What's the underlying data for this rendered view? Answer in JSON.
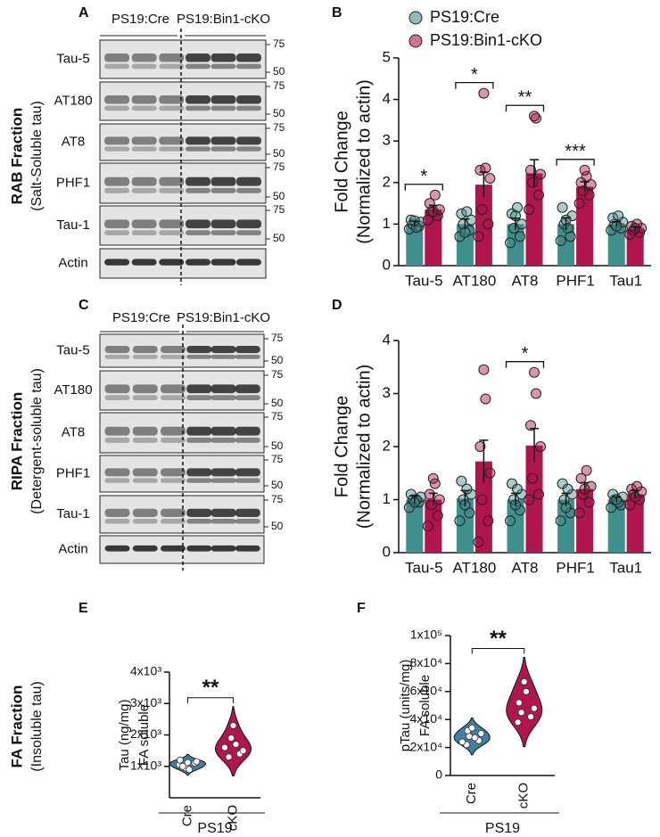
{
  "fractions": [
    {
      "title": "RAB Fraction",
      "subtitle": "(Salt-Soluble tau)"
    },
    {
      "title": "RIPA Fraction",
      "subtitle": "(Detergent-soluble tau)"
    },
    {
      "title": "FA Fraction",
      "subtitle": "(Insoluble tau)"
    }
  ],
  "blots": [
    {
      "panel": "A",
      "groups": [
        "PS19:Cre",
        "PS19:Bin1-cKO"
      ],
      "rows": [
        {
          "label": "Tau-5",
          "markers": [
            75,
            50
          ]
        },
        {
          "label": "AT180",
          "markers": [
            75,
            50
          ]
        },
        {
          "label": "AT8",
          "markers": [
            75,
            50
          ]
        },
        {
          "label": "PHF1",
          "markers": [
            75,
            50
          ]
        },
        {
          "label": "Tau-1",
          "markers": [
            75,
            50
          ]
        },
        {
          "label": "Actin"
        }
      ]
    },
    {
      "panel": "C",
      "groups": [
        "PS19:Cre",
        "PS19:Bin1-cKO"
      ],
      "rows": [
        {
          "label": "Tau-5",
          "markers": [
            75,
            50
          ]
        },
        {
          "label": "AT180",
          "markers": [
            75,
            50
          ]
        },
        {
          "label": "AT8",
          "markers": [
            75,
            50
          ]
        },
        {
          "label": "PHF1",
          "markers": [
            75,
            50
          ]
        },
        {
          "label": "Tau-1",
          "markers": [
            75,
            50
          ]
        },
        {
          "label": "Actin"
        }
      ]
    }
  ],
  "chart_data": [
    {
      "type": "bar",
      "panel": "B",
      "ylabel": [
        "Fold Change",
        "(Normalized to actin)"
      ],
      "categories": [
        "Tau-5",
        "AT180",
        "AT8",
        "PHF1",
        "Tau1"
      ],
      "ylim": [
        0,
        5
      ],
      "yticks": [
        0,
        1,
        2,
        3,
        4,
        5
      ],
      "legend": "top",
      "series": [
        {
          "name": "PS19:Cre",
          "color": "#3f8f8c",
          "values": [
            1.0,
            1.0,
            1.0,
            1.0,
            1.0
          ],
          "errors": [
            0.07,
            0.12,
            0.14,
            0.15,
            0.06
          ],
          "points": [
            [
              0.88,
              0.95,
              1.0,
              1.05,
              1.1,
              0.92,
              1.08
            ],
            [
              0.7,
              0.85,
              1.0,
              1.1,
              1.25,
              1.3,
              0.8
            ],
            [
              0.55,
              0.7,
              0.9,
              1.0,
              1.25,
              1.4,
              1.2
            ],
            [
              0.6,
              0.7,
              1.0,
              1.2,
              1.4,
              0.9,
              1.1
            ],
            [
              0.85,
              0.9,
              1.0,
              1.05,
              1.15,
              1.2,
              0.95
            ]
          ]
        },
        {
          "name": "PS19:Bin1-cKO",
          "color": "#b0154e",
          "values": [
            1.35,
            1.95,
            2.22,
            1.9,
            0.88
          ],
          "errors": [
            0.1,
            0.3,
            0.33,
            0.12,
            0.05
          ],
          "points": [
            [
              1.1,
              1.2,
              1.3,
              1.35,
              1.5,
              1.7,
              1.3
            ],
            [
              0.7,
              1.0,
              1.35,
              2.1,
              2.3,
              2.35,
              4.15
            ],
            [
              1.35,
              1.7,
              2.0,
              2.2,
              2.3,
              3.55,
              3.6
            ],
            [
              1.5,
              1.7,
              1.8,
              1.95,
              2.0,
              2.15,
              2.3
            ],
            [
              0.75,
              0.8,
              0.85,
              0.9,
              0.95,
              1.0,
              0.9
            ]
          ]
        }
      ],
      "annotations": [
        {
          "text": "*",
          "category": "Tau-5"
        },
        {
          "text": "*",
          "category": "AT180"
        },
        {
          "text": "**",
          "category": "AT8"
        },
        {
          "text": "***",
          "category": "PHF1"
        }
      ]
    },
    {
      "type": "bar",
      "panel": "D",
      "ylabel": [
        "Fold Change",
        "(Normalized to actin)"
      ],
      "categories": [
        "Tau-5",
        "AT180",
        "AT8",
        "PHF1",
        "Tau1"
      ],
      "ylim": [
        0,
        4
      ],
      "yticks": [
        0,
        1,
        2,
        3,
        4
      ],
      "series": [
        {
          "name": "PS19:Cre",
          "color": "#3f8f8c",
          "values": [
            1.0,
            1.02,
            1.0,
            1.0,
            1.0
          ],
          "errors": [
            0.07,
            0.15,
            0.12,
            0.12,
            0.05
          ],
          "points": [
            [
              0.85,
              0.95,
              1.0,
              1.05,
              1.1,
              1.0,
              0.95
            ],
            [
              0.6,
              0.75,
              1.0,
              1.1,
              1.35,
              1.2,
              0.9
            ],
            [
              0.6,
              0.8,
              1.0,
              1.1,
              1.3,
              1.2,
              0.9
            ],
            [
              0.6,
              0.75,
              1.0,
              1.1,
              1.3,
              1.2,
              0.85
            ],
            [
              0.85,
              0.9,
              1.0,
              1.05,
              1.1,
              0.95,
              1.0
            ]
          ]
        },
        {
          "name": "PS19:Bin1-cKO",
          "color": "#b0154e",
          "values": [
            1.0,
            1.72,
            2.02,
            1.2,
            1.1
          ],
          "errors": [
            0.12,
            0.4,
            0.32,
            0.12,
            0.07
          ],
          "points": [
            [
              0.5,
              0.7,
              0.9,
              1.0,
              1.1,
              1.3,
              1.4
            ],
            [
              0.2,
              0.6,
              1.0,
              1.5,
              2.0,
              2.9,
              3.45
            ],
            [
              1.0,
              1.1,
              1.4,
              2.0,
              2.4,
              3.0,
              3.4
            ],
            [
              0.75,
              0.95,
              1.1,
              1.25,
              1.4,
              1.55,
              1.2
            ],
            [
              0.9,
              1.0,
              1.1,
              1.15,
              1.2,
              1.25,
              1.05
            ]
          ]
        }
      ],
      "annotations": [
        {
          "text": "*",
          "category": "AT8"
        }
      ]
    },
    {
      "type": "violin",
      "panel": "E",
      "ylabel": [
        "Tau (ng/mg)",
        "FA soluble"
      ],
      "group_label": "PS19",
      "ylim": [
        0,
        4000
      ],
      "yticks": [
        {
          "value": 1000,
          "label": "1x10³"
        },
        {
          "value": 2000,
          "label": "2x10³"
        },
        {
          "value": 3000,
          "label": "3x10³"
        },
        {
          "value": 4000,
          "label": "4x10³"
        }
      ],
      "series": [
        {
          "name": "Cre",
          "color": "#3d7fa6",
          "values": [
            1050,
            1100,
            950,
            1150,
            1000,
            900,
            1120,
            1200
          ]
        },
        {
          "name": "cKO",
          "color": "#b0154e",
          "values": [
            1600,
            1400,
            1900,
            1500,
            1300,
            1700,
            2300
          ]
        }
      ],
      "annotations": [
        {
          "text": "**"
        }
      ]
    },
    {
      "type": "violin",
      "panel": "F",
      "ylabel": [
        "pTau (units/mg)",
        "FA soluble"
      ],
      "group_label": "PS19",
      "ylim": [
        0,
        100000
      ],
      "yticks": [
        0,
        {
          "value": 20000,
          "label": "2x10⁴"
        },
        {
          "value": 40000,
          "label": "4x10⁴"
        },
        {
          "value": 60000,
          "label": "6x10⁴"
        },
        {
          "value": 80000,
          "label": "8x10⁴"
        },
        {
          "value": 100000,
          "label": "1x10⁵"
        }
      ],
      "series": [
        {
          "name": "Cre",
          "color": "#3d7fa6",
          "values": [
            22000,
            25000,
            28000,
            30000,
            32000,
            27000,
            34000,
            24000
          ]
        },
        {
          "name": "cKO",
          "color": "#b0154e",
          "values": [
            38000,
            42000,
            45000,
            48000,
            52000,
            60000,
            67000
          ]
        }
      ],
      "annotations": [
        {
          "text": "**"
        }
      ]
    }
  ]
}
